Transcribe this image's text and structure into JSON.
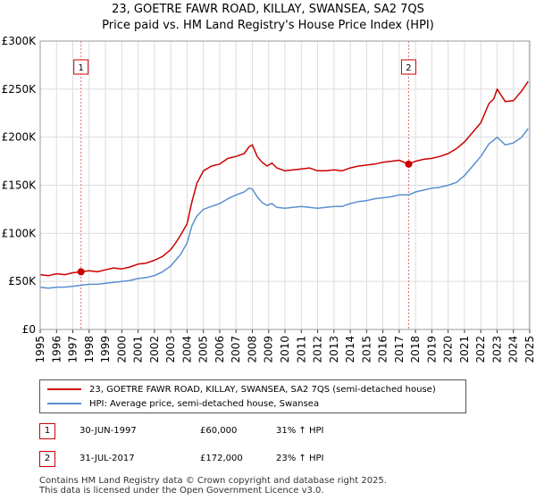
{
  "title_line1": "23, GOETRE FAWR ROAD, KILLAY, SWANSEA, SA2 7QS",
  "title_line2": "Price paid vs. HM Land Registry's House Price Index (HPI)",
  "legend": {
    "property_label": "23, GOETRE FAWR ROAD, KILLAY, SWANSEA, SA2 7QS (semi-detached house)",
    "hpi_label": "HPI: Average price, semi-detached house, Swansea"
  },
  "colors": {
    "property": "#cc0000",
    "hpi": "#5b8fd0",
    "shade": "#dbe6f5",
    "marker_line": "#e07070"
  },
  "sales": [
    {
      "num": "1",
      "date": "30-JUN-1997",
      "price": "£60,000",
      "hpi_rel": "31% ↑ HPI"
    },
    {
      "num": "2",
      "date": "31-JUL-2017",
      "price": "£172,000",
      "hpi_rel": "23% ↑ HPI"
    }
  ],
  "footer_line1": "Contains HM Land Registry data © Crown copyright and database right 2025.",
  "footer_line2": "This data is licensed under the Open Government Licence v3.0.",
  "chart_data": {
    "type": "line",
    "title": "Price paid vs. HM Land Registry's House Price Index (HPI)",
    "xlabel": "",
    "ylabel": "",
    "xlim": [
      1995,
      2025
    ],
    "ylim": [
      0,
      300000
    ],
    "yticks": [
      0,
      50000,
      100000,
      150000,
      200000,
      250000,
      300000
    ],
    "ytick_labels": [
      "£0",
      "£50K",
      "£100K",
      "£150K",
      "£200K",
      "£250K",
      "£300K"
    ],
    "xticks": [
      "1995",
      "1996",
      "1997",
      "1998",
      "1999",
      "2000",
      "2001",
      "2002",
      "2003",
      "2004",
      "2005",
      "2006",
      "2007",
      "2008",
      "2009",
      "2010",
      "2011",
      "2012",
      "2013",
      "2014",
      "2015",
      "2016",
      "2017",
      "2018",
      "2019",
      "2020",
      "2021",
      "2022",
      "2023",
      "2024",
      "2025"
    ],
    "grid": true,
    "shaded_region_start": 2024.9,
    "sale_markers": [
      {
        "label": "1",
        "x": 1997.5,
        "y": 60000
      },
      {
        "label": "2",
        "x": 2017.58,
        "y": 172000
      }
    ],
    "series": [
      {
        "name": "23, GOETRE FAWR ROAD, KILLAY, SWANSEA, SA2 7QS (semi-detached house)",
        "x": [
          1995.0,
          1995.5,
          1996.0,
          1996.5,
          1997.0,
          1997.5,
          1998.0,
          1998.5,
          1999.0,
          1999.5,
          2000.0,
          2000.5,
          2001.0,
          2001.5,
          2002.0,
          2002.5,
          2003.0,
          2003.3,
          2003.6,
          2004.0,
          2004.3,
          2004.6,
          2005.0,
          2005.5,
          2006.0,
          2006.5,
          2007.0,
          2007.5,
          2007.8,
          2008.0,
          2008.3,
          2008.6,
          2008.9,
          2009.2,
          2009.5,
          2010.0,
          2010.5,
          2011.0,
          2011.5,
          2012.0,
          2012.5,
          2013.0,
          2013.5,
          2014.0,
          2014.5,
          2015.0,
          2015.5,
          2016.0,
          2016.5,
          2017.0,
          2017.58,
          2018.0,
          2018.5,
          2019.0,
          2019.5,
          2020.0,
          2020.5,
          2021.0,
          2021.5,
          2022.0,
          2022.5,
          2022.8,
          2023.0,
          2023.5,
          2024.0,
          2024.5,
          2024.9
        ],
        "values": [
          57000,
          56000,
          58000,
          57000,
          59000,
          60000,
          61000,
          60000,
          62000,
          64000,
          63000,
          65000,
          68000,
          69000,
          72000,
          76000,
          83000,
          90000,
          98000,
          110000,
          133000,
          152000,
          165000,
          170000,
          172000,
          178000,
          180000,
          183000,
          190000,
          192000,
          180000,
          174000,
          170000,
          173000,
          168000,
          165000,
          166000,
          167000,
          168000,
          165000,
          165000,
          166000,
          165000,
          168000,
          170000,
          171000,
          172000,
          174000,
          175000,
          176000,
          172000,
          175000,
          177000,
          178000,
          180000,
          183000,
          188000,
          195000,
          205000,
          215000,
          235000,
          240000,
          250000,
          237000,
          238000,
          248000,
          258000
        ]
      },
      {
        "name": "HPI: Average price, semi-detached house, Swansea",
        "x": [
          1995.0,
          1995.5,
          1996.0,
          1996.5,
          1997.0,
          1997.5,
          1998.0,
          1998.5,
          1999.0,
          1999.5,
          2000.0,
          2000.5,
          2001.0,
          2001.5,
          2002.0,
          2002.5,
          2003.0,
          2003.3,
          2003.6,
          2004.0,
          2004.3,
          2004.6,
          2005.0,
          2005.5,
          2006.0,
          2006.5,
          2007.0,
          2007.5,
          2007.8,
          2008.0,
          2008.3,
          2008.6,
          2008.9,
          2009.2,
          2009.5,
          2010.0,
          2010.5,
          2011.0,
          2011.5,
          2012.0,
          2012.5,
          2013.0,
          2013.5,
          2014.0,
          2014.5,
          2015.0,
          2015.5,
          2016.0,
          2016.5,
          2017.0,
          2017.58,
          2018.0,
          2018.5,
          2019.0,
          2019.5,
          2020.0,
          2020.5,
          2021.0,
          2021.5,
          2022.0,
          2022.5,
          2022.8,
          2023.0,
          2023.5,
          2024.0,
          2024.5,
          2024.9
        ],
        "values": [
          44000,
          43000,
          44000,
          44000,
          45000,
          46000,
          47000,
          47000,
          48000,
          49000,
          50000,
          51000,
          53000,
          54000,
          56000,
          60000,
          66000,
          72000,
          78000,
          90000,
          108000,
          118000,
          125000,
          128000,
          131000,
          136000,
          140000,
          143000,
          147000,
          146000,
          138000,
          132000,
          129000,
          131000,
          127000,
          126000,
          127000,
          128000,
          127000,
          126000,
          127000,
          128000,
          128000,
          131000,
          133000,
          134000,
          136000,
          137000,
          138000,
          140000,
          140000,
          143000,
          145000,
          147000,
          148000,
          150000,
          153000,
          160000,
          170000,
          180000,
          193000,
          197000,
          200000,
          192000,
          194000,
          200000,
          209000
        ]
      }
    ]
  }
}
